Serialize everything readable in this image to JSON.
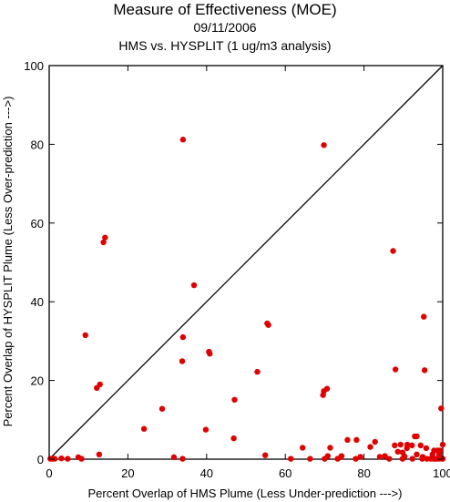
{
  "chart_data": {
    "type": "scatter",
    "title": "Measure of Effectiveness (MOE)",
    "subtitle": "09/11/2006",
    "subtitle2": "HMS vs. HYSPLIT  (1 ug/m3 analysis)",
    "xlabel": "Percent Overlap of HMS Plume (Less Under-prediction --->)",
    "ylabel": "Percent Overlap of HYSPLIT Plume (Less Over-prediction --->)",
    "xlim": [
      0,
      100
    ],
    "ylim": [
      0,
      100
    ],
    "xticks": [
      0,
      20,
      40,
      60,
      80,
      100
    ],
    "yticks": [
      0,
      20,
      40,
      60,
      80,
      100
    ],
    "tick_labels_x": [
      "0",
      "20",
      "40",
      "60",
      "80",
      "100"
    ],
    "tick_labels_y": [
      "0",
      "20",
      "40",
      "60",
      "80",
      "100"
    ],
    "reference_line": "y = x",
    "marker_color": "#e00000",
    "points": [
      [
        34,
        81.2
      ],
      [
        69.8,
        79.8
      ],
      [
        14.2,
        56.3
      ],
      [
        13.8,
        55.1
      ],
      [
        87.4,
        52.9
      ],
      [
        36.8,
        44.2
      ],
      [
        95.2,
        36.2
      ],
      [
        9.2,
        31.5
      ],
      [
        34,
        31
      ],
      [
        55.4,
        34.5
      ],
      [
        55.7,
        34.1
      ],
      [
        40.6,
        27.3
      ],
      [
        40.8,
        26.8
      ],
      [
        33.8,
        24.9
      ],
      [
        52.9,
        22.2
      ],
      [
        88,
        22.8
      ],
      [
        95.4,
        22.6
      ],
      [
        70.6,
        17.9
      ],
      [
        69.8,
        17.3
      ],
      [
        69.6,
        16.3
      ],
      [
        12.9,
        19
      ],
      [
        12.1,
        18.1
      ],
      [
        47.1,
        15.1
      ],
      [
        28.7,
        12.8
      ],
      [
        99.6,
        12.9
      ],
      [
        24.1,
        7.7
      ],
      [
        39.8,
        7.5
      ],
      [
        46.9,
        5.3
      ],
      [
        92.9,
        5.8
      ],
      [
        93.4,
        5.8
      ],
      [
        75.8,
        4.9
      ],
      [
        78.1,
        4.9
      ],
      [
        82.8,
        4.4
      ],
      [
        87.8,
        3.5
      ],
      [
        89.3,
        3.7
      ],
      [
        91,
        3.7
      ],
      [
        92.2,
        3.5
      ],
      [
        94.4,
        3.5
      ],
      [
        100,
        3.7
      ],
      [
        81.6,
        3.1
      ],
      [
        64.4,
        2.9
      ],
      [
        71.4,
        2.9
      ],
      [
        90.9,
        2.8
      ],
      [
        95.8,
        2.8
      ],
      [
        97.8,
        2.2
      ],
      [
        98.6,
        2.2
      ],
      [
        99.3,
        2.2
      ],
      [
        88.6,
        1.9
      ],
      [
        89.8,
        1.7
      ],
      [
        93.4,
        1.2
      ],
      [
        97.4,
        1.2
      ],
      [
        99.1,
        1.4
      ],
      [
        12.7,
        1.2
      ],
      [
        54.9,
        1
      ],
      [
        70.8,
        0.8
      ],
      [
        74.3,
        0.8
      ],
      [
        85.3,
        0.8
      ],
      [
        90.3,
        0.7
      ],
      [
        99.1,
        0.7
      ],
      [
        7.4,
        0.5
      ],
      [
        31.7,
        0.5
      ],
      [
        74.1,
        0.5
      ],
      [
        79.1,
        0.6
      ],
      [
        84,
        0.6
      ],
      [
        94.9,
        0.6
      ],
      [
        0.3,
        0.1
      ],
      [
        0.8,
        0.1
      ],
      [
        1.4,
        0.1
      ],
      [
        3.1,
        0.2
      ],
      [
        4.7,
        0.1
      ],
      [
        8.2,
        0.1
      ],
      [
        33.9,
        0.1
      ],
      [
        61.4,
        0.1
      ],
      [
        66.3,
        0.1
      ],
      [
        70,
        0.1
      ],
      [
        73.3,
        0.1
      ],
      [
        77.9,
        0.1
      ],
      [
        86.4,
        0.1
      ],
      [
        89.8,
        0.1
      ],
      [
        92.3,
        0.1
      ],
      [
        94.8,
        0.1
      ],
      [
        96,
        0.1
      ],
      [
        96.9,
        0.1
      ],
      [
        97.7,
        0.1
      ],
      [
        98.3,
        0.1
      ],
      [
        99,
        0.1
      ],
      [
        99.8,
        0.1
      ],
      [
        100,
        0.1
      ]
    ]
  }
}
